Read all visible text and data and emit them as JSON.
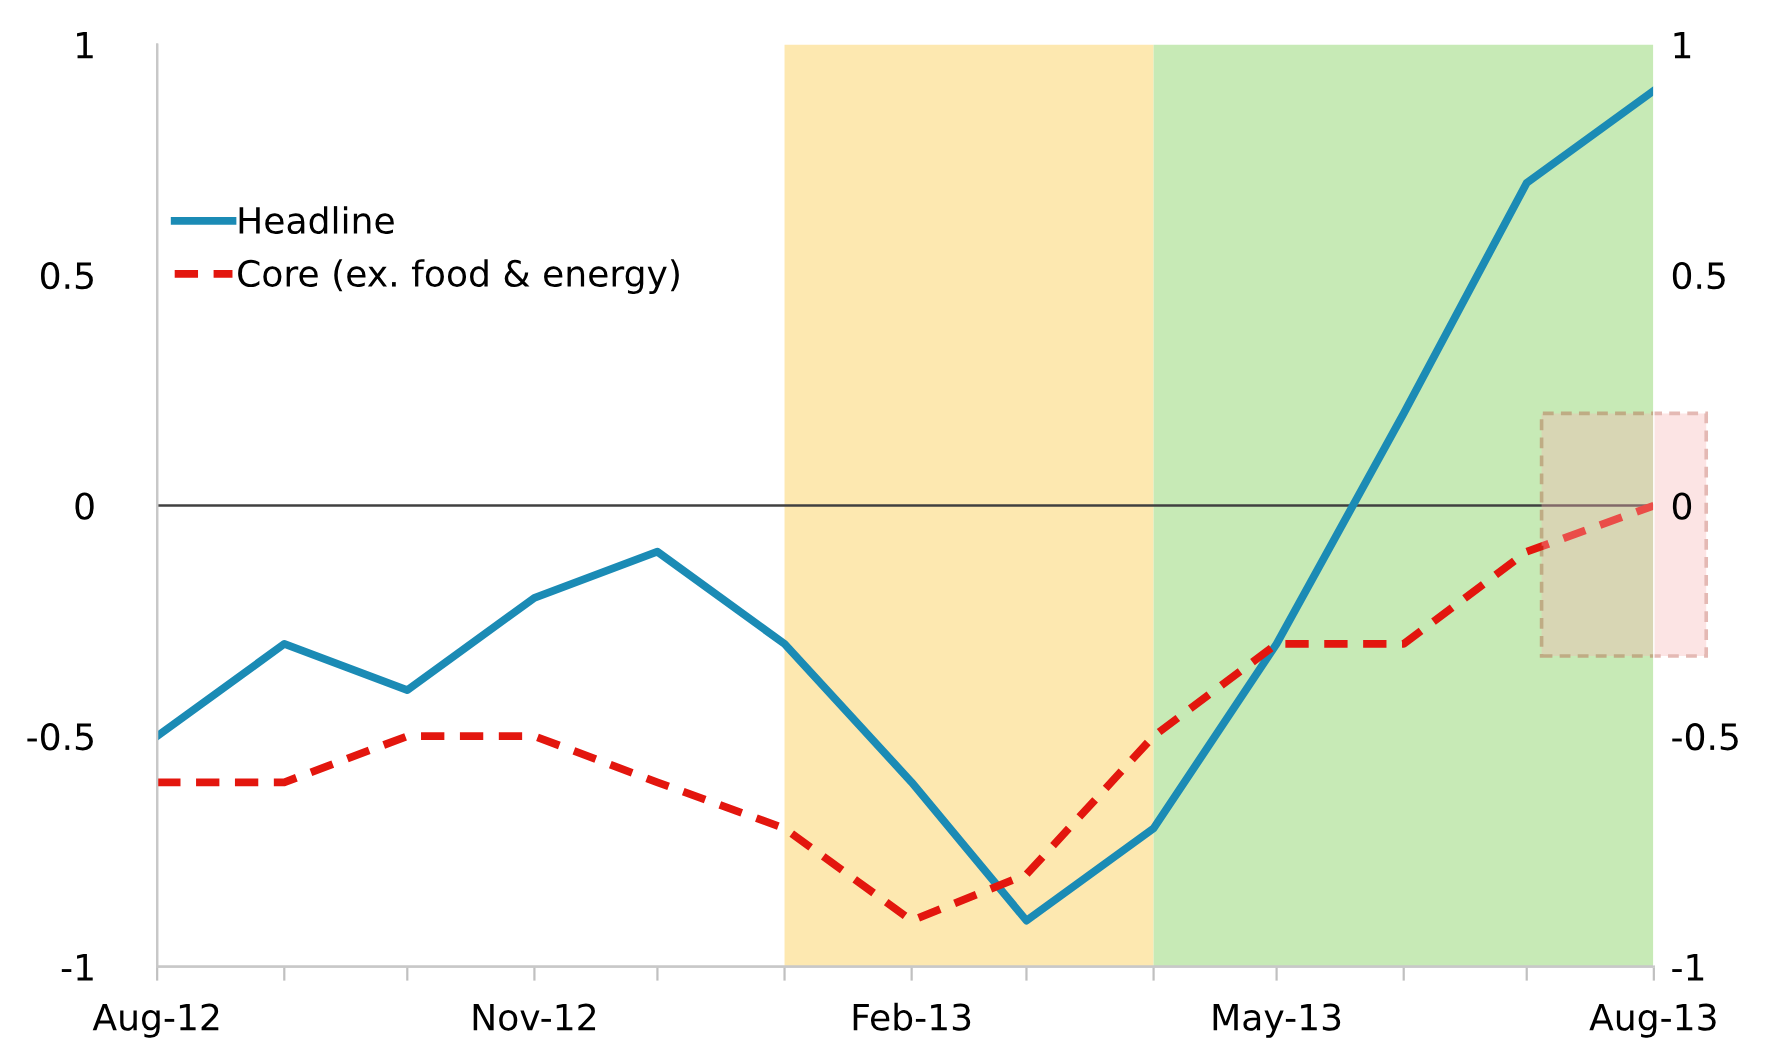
{
  "chart_data": {
    "type": "line",
    "x": [
      "2012-08",
      "2012-09",
      "2012-10",
      "2012-11",
      "2012-12",
      "2013-01",
      "2013-02",
      "2013-03",
      "2013-04",
      "2013-05",
      "2013-06",
      "2013-07",
      "2013-08"
    ],
    "series": [
      {
        "name": "Headline",
        "color": "#1b8bb5",
        "line_style": "solid",
        "values": [
          -0.5,
          -0.3,
          -0.4,
          -0.2,
          -0.1,
          -0.3,
          -0.6,
          -0.9,
          -0.7,
          -0.3,
          0.2,
          0.7,
          0.9
        ]
      },
      {
        "name": "Core (ex. food & energy)",
        "color": "#e3160e",
        "line_style": "dashed",
        "values": [
          -0.6,
          -0.6,
          -0.5,
          -0.5,
          -0.6,
          -0.7,
          -0.9,
          -0.8,
          -0.5,
          -0.3,
          -0.3,
          -0.1,
          0
        ]
      }
    ],
    "xlim": [
      "2012-08",
      "2013-08"
    ],
    "xticks": [
      {
        "value": "2012-08",
        "label": "Aug-12"
      },
      {
        "value": "2012-09",
        "label": null
      },
      {
        "value": "2012-10",
        "label": null
      },
      {
        "value": "2012-11",
        "label": "Nov-12"
      },
      {
        "value": "2012-12",
        "label": null
      },
      {
        "value": "2013-01",
        "label": null
      },
      {
        "value": "2013-02",
        "label": "Feb-13"
      },
      {
        "value": "2013-03",
        "label": null
      },
      {
        "value": "2013-04",
        "label": null
      },
      {
        "value": "2013-05",
        "label": "May-13"
      },
      {
        "value": "2013-06",
        "label": null
      },
      {
        "value": "2013-07",
        "label": null
      },
      {
        "value": "2013-08",
        "label": "Aug-13"
      }
    ],
    "ylim": [
      -1,
      1
    ],
    "yticks": [
      -1,
      -0.5,
      0,
      0.5,
      1
    ],
    "y2lim": [
      -1,
      1
    ],
    "y2ticks": [
      -1,
      -0.5,
      0,
      0.5,
      1
    ],
    "ref_lines": [
      {
        "axis": "y",
        "value": 0,
        "color": "#404040",
        "line_style": "solid"
      }
    ],
    "bands": [
      {
        "axis": "x",
        "from": "2013-01",
        "to": "2013-04",
        "color": "#fde8b0"
      },
      {
        "axis": "x",
        "from": "2013-04",
        "to": "2013-08",
        "color": "#c7eab6"
      }
    ],
    "legend": "top left",
    "grid": false,
    "marker": "none"
  }
}
